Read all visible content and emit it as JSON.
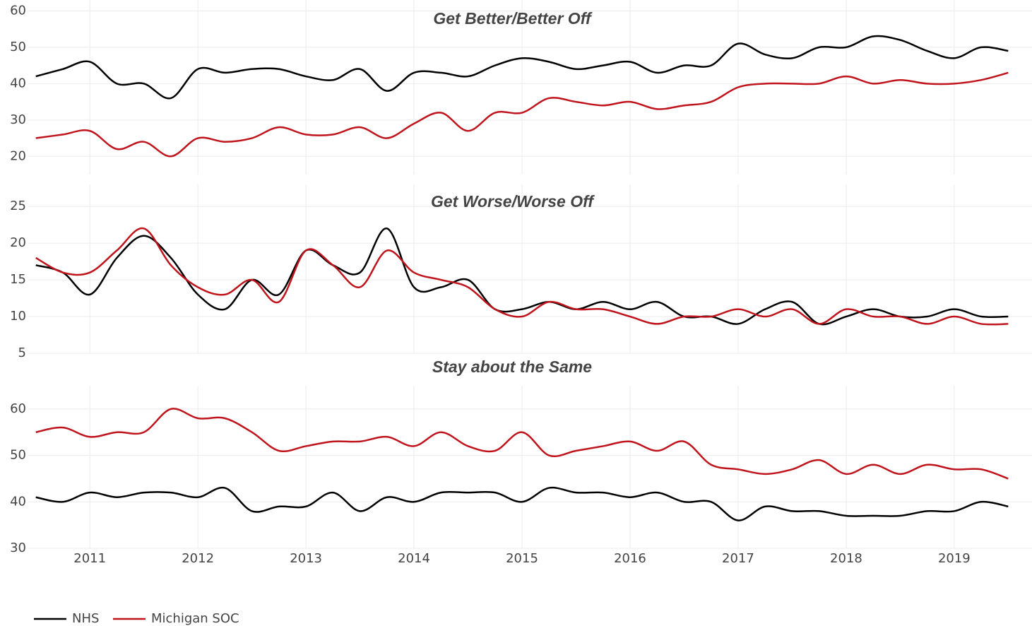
{
  "chart_data": [
    {
      "type": "line",
      "title": "Get Better/Better Off",
      "x": [
        2010.5,
        2010.75,
        2011,
        2011.25,
        2011.5,
        2011.75,
        2012,
        2012.25,
        2012.5,
        2012.75,
        2013,
        2013.25,
        2013.5,
        2013.75,
        2014,
        2014.25,
        2014.5,
        2014.75,
        2015,
        2015.25,
        2015.5,
        2015.75,
        2016,
        2016.25,
        2016.5,
        2016.75,
        2017,
        2017.25,
        2017.5,
        2017.75,
        2018,
        2018.25,
        2018.5,
        2018.75,
        2019,
        2019.25,
        2019.5
      ],
      "series": [
        {
          "color": "#000000",
          "values": [
            42,
            44,
            46,
            40,
            40,
            36,
            44,
            43,
            44,
            44,
            42,
            41,
            44,
            38,
            43,
            43,
            42,
            45,
            47,
            46,
            44,
            45,
            46,
            43,
            45,
            45,
            51,
            48,
            47,
            50,
            50,
            53,
            52,
            49,
            47,
            50,
            49
          ]
        },
        {
          "color": "#c0141c",
          "values": [
            25,
            26,
            27,
            22,
            24,
            20,
            25,
            24,
            25,
            28,
            26,
            26,
            28,
            25,
            29,
            32,
            27,
            32,
            32,
            36,
            35,
            34,
            35,
            33,
            34,
            35,
            39,
            40,
            40,
            40,
            42,
            40,
            41,
            40,
            40,
            41,
            43
          ]
        }
      ],
      "xlim": [
        2010.43,
        2019.72
      ],
      "xticks": [
        2011,
        2012,
        2013,
        2014,
        2015,
        2016,
        2017,
        2018,
        2019
      ],
      "ylim": [
        15,
        63
      ],
      "yticks": [
        20,
        30,
        40,
        50,
        60
      ],
      "grid": true
    },
    {
      "type": "line",
      "title": "Get Worse/Worse Off",
      "x": [
        2010.5,
        2010.75,
        2011,
        2011.25,
        2011.5,
        2011.75,
        2012,
        2012.25,
        2012.5,
        2012.75,
        2013,
        2013.25,
        2013.5,
        2013.75,
        2014,
        2014.25,
        2014.5,
        2014.75,
        2015,
        2015.25,
        2015.5,
        2015.75,
        2016,
        2016.25,
        2016.5,
        2016.75,
        2017,
        2017.25,
        2017.5,
        2017.75,
        2018,
        2018.25,
        2018.5,
        2018.75,
        2019,
        2019.25,
        2019.5
      ],
      "series": [
        {
          "color": "#000000",
          "values": [
            17,
            16,
            13,
            18,
            21,
            18,
            13,
            11,
            15,
            13,
            19,
            17,
            16,
            22,
            14,
            14,
            15,
            11,
            11,
            12,
            11,
            12,
            11,
            12,
            10,
            10,
            9,
            11,
            12,
            9,
            10,
            11,
            10,
            10,
            11,
            10,
            10
          ]
        },
        {
          "color": "#c0141c",
          "values": [
            18,
            16,
            16,
            19,
            22,
            17,
            14,
            13,
            15,
            12,
            19,
            17,
            14,
            19,
            16,
            15,
            14,
            11,
            10,
            12,
            11,
            11,
            10,
            9,
            10,
            10,
            11,
            10,
            11,
            9,
            11,
            10,
            10,
            9,
            10,
            9,
            9
          ]
        }
      ],
      "xlim": [
        2010.43,
        2019.72
      ],
      "xticks": [
        2011,
        2012,
        2013,
        2014,
        2015,
        2016,
        2017,
        2018,
        2019
      ],
      "ylim": [
        5,
        28
      ],
      "yticks": [
        5,
        10,
        15,
        20,
        25
      ],
      "grid": true
    },
    {
      "type": "line",
      "title": "Stay about the Same",
      "x": [
        2010.5,
        2010.75,
        2011,
        2011.25,
        2011.5,
        2011.75,
        2012,
        2012.25,
        2012.5,
        2012.75,
        2013,
        2013.25,
        2013.5,
        2013.75,
        2014,
        2014.25,
        2014.5,
        2014.75,
        2015,
        2015.25,
        2015.5,
        2015.75,
        2016,
        2016.25,
        2016.5,
        2016.75,
        2017,
        2017.25,
        2017.5,
        2017.75,
        2018,
        2018.25,
        2018.5,
        2018.75,
        2019,
        2019.25,
        2019.5
      ],
      "series": [
        {
          "name": "NHS",
          "color": "#000000",
          "values": [
            41,
            40,
            42,
            41,
            42,
            42,
            41,
            43,
            38,
            39,
            39,
            42,
            38,
            41,
            40,
            42,
            42,
            42,
            40,
            43,
            42,
            42,
            41,
            42,
            40,
            40,
            36,
            39,
            38,
            38,
            37,
            37,
            37,
            38,
            38,
            40,
            39
          ]
        },
        {
          "name": "Michigan SOC",
          "color": "#c0141c",
          "values": [
            55,
            56,
            54,
            55,
            55,
            60,
            58,
            58,
            55,
            51,
            52,
            53,
            53,
            54,
            52,
            55,
            52,
            51,
            55,
            50,
            51,
            52,
            53,
            51,
            53,
            48,
            47,
            46,
            47,
            49,
            46,
            48,
            46,
            48,
            47,
            47,
            45
          ]
        }
      ],
      "xlim": [
        2010.43,
        2019.72
      ],
      "xticks": [
        2011,
        2012,
        2013,
        2014,
        2015,
        2016,
        2017,
        2018,
        2019
      ],
      "ylim": [
        30,
        65
      ],
      "yticks": [
        30,
        40,
        50,
        60
      ],
      "grid": true
    }
  ]
}
